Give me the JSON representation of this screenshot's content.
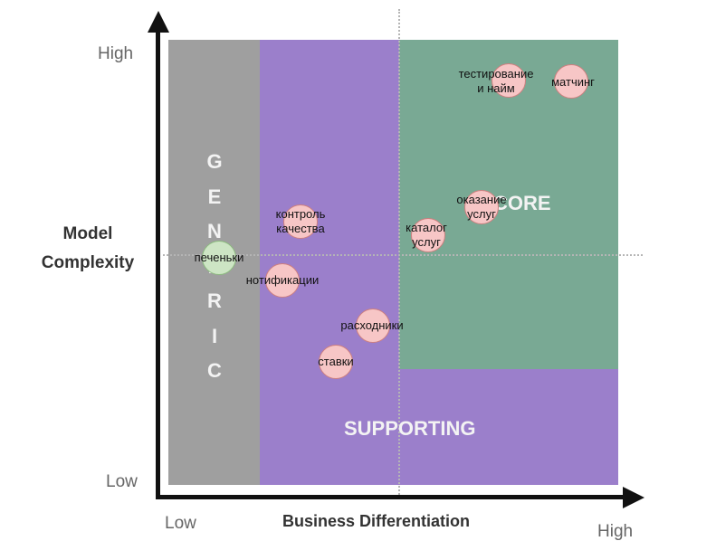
{
  "axes": {
    "y_title": "Model\nComplexity",
    "x_title": "Business Differentiation",
    "y_high": "High",
    "y_low": "Low",
    "x_low": "Low",
    "x_high": "High"
  },
  "regions": {
    "generic": "GENERIC",
    "core": "CORE",
    "supporting": "SUPPORTING"
  },
  "colors": {
    "generic": "#9f9f9f",
    "supporting": "#9b7fcb",
    "core": "#79a994",
    "bubble_fill": "#f7c6c6",
    "bubble_generic_fill": "#cde5c4"
  },
  "items": [
    {
      "label": "тестирование\nи найм",
      "category": "core"
    },
    {
      "label": "матчинг",
      "category": "core"
    },
    {
      "label": "оказание\nуслуг",
      "category": "core"
    },
    {
      "label": "каталог\nуслуг",
      "category": "core"
    },
    {
      "label": "контроль\nкачества",
      "category": "supporting"
    },
    {
      "label": "печеньки",
      "category": "generic"
    },
    {
      "label": "нотификации",
      "category": "supporting"
    },
    {
      "label": "расходники",
      "category": "supporting"
    },
    {
      "label": "ставки",
      "category": "supporting"
    }
  ]
}
